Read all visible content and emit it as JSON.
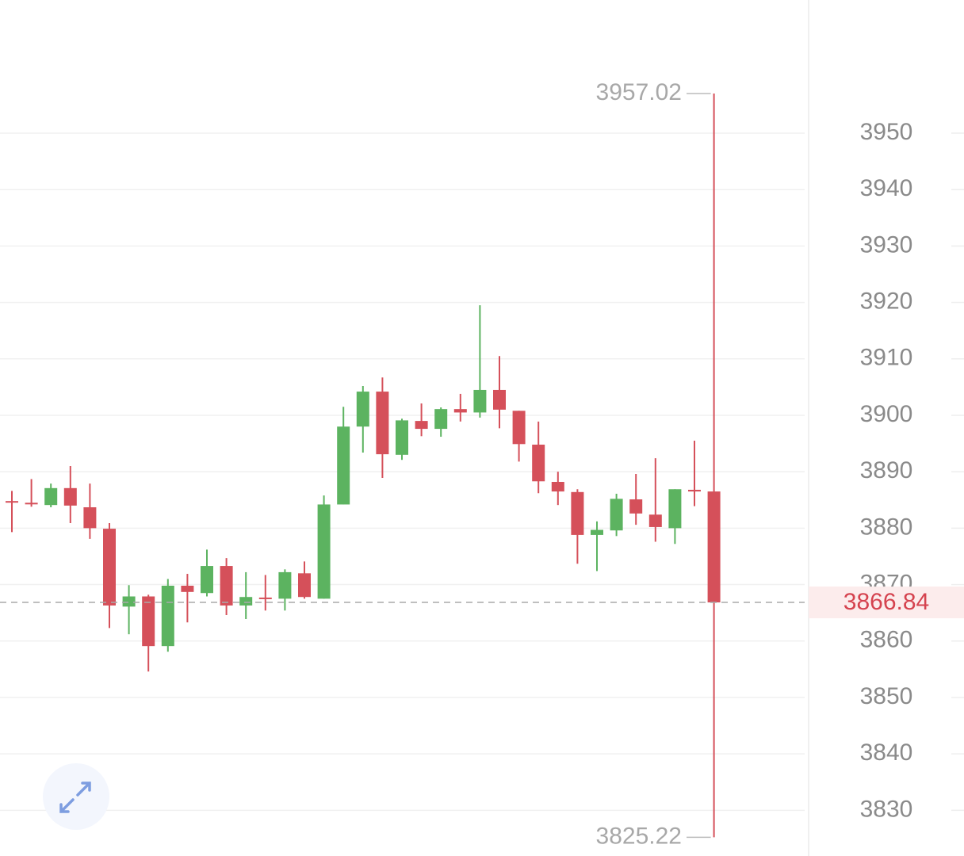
{
  "chart_data": {
    "type": "candlestick",
    "open": [
      3884.8,
      3884.5,
      3884.1,
      3887.1,
      3883.7,
      3879.9,
      3866.1,
      3867.9,
      3859.1,
      3869.8,
      3868.5,
      3873.3,
      3866.3,
      3867.7,
      3867.5,
      3872.0,
      3867.5,
      3884.2,
      3898.0,
      3904.2,
      3893.0,
      3899.0,
      3897.6,
      3901.1,
      3900.5,
      3904.5,
      3900.8,
      3894.8,
      3888.2,
      3886.4,
      3878.8,
      3879.6,
      3885.1,
      3882.4,
      3880.0,
      3886.8,
      3886.5
    ],
    "high": [
      3886.6,
      3888.7,
      3887.9,
      3891.0,
      3887.9,
      3880.9,
      3869.9,
      3868.2,
      3871.0,
      3871.9,
      3876.2,
      3874.7,
      3872.2,
      3871.7,
      3872.7,
      3874.1,
      3885.8,
      3901.5,
      3905.2,
      3906.7,
      3899.4,
      3902.1,
      3901.4,
      3903.8,
      3919.5,
      3910.5,
      3900.8,
      3898.9,
      3890.0,
      3886.9,
      3881.2,
      3886.1,
      3889.6,
      3892.4,
      3886.9,
      3895.5,
      3957.02
    ],
    "low": [
      3879.3,
      3883.8,
      3883.7,
      3880.9,
      3878.1,
      3862.3,
      3861.2,
      3854.6,
      3858.1,
      3863.3,
      3867.9,
      3864.6,
      3863.9,
      3865.4,
      3865.4,
      3867.5,
      3867.5,
      3884.2,
      3893.4,
      3888.9,
      3892.1,
      3896.3,
      3896.2,
      3898.9,
      3899.6,
      3897.7,
      3891.8,
      3886.2,
      3884.1,
      3873.7,
      3872.4,
      3878.6,
      3880.6,
      3877.6,
      3877.2,
      3883.9,
      3825.22
    ],
    "close": [
      3884.6,
      3884.3,
      3887.1,
      3884.0,
      3880.0,
      3866.3,
      3867.9,
      3859.1,
      3869.8,
      3868.7,
      3873.3,
      3866.3,
      3867.8,
      3867.6,
      3872.2,
      3867.8,
      3884.2,
      3898.0,
      3904.2,
      3893.1,
      3899.1,
      3897.6,
      3901.1,
      3900.5,
      3904.5,
      3901.0,
      3894.9,
      3888.3,
      3886.5,
      3878.8,
      3879.7,
      3885.2,
      3882.6,
      3880.2,
      3886.9,
      3886.5,
      3866.84
    ],
    "up_color": "#5cb360",
    "down_color": "#d5505a",
    "ylim": [
      3821.9,
      3973.6
    ],
    "yticks": [
      3830,
      3840,
      3850,
      3860,
      3870,
      3880,
      3890,
      3900,
      3910,
      3920,
      3930,
      3940,
      3950
    ],
    "grid": true
  }
}
